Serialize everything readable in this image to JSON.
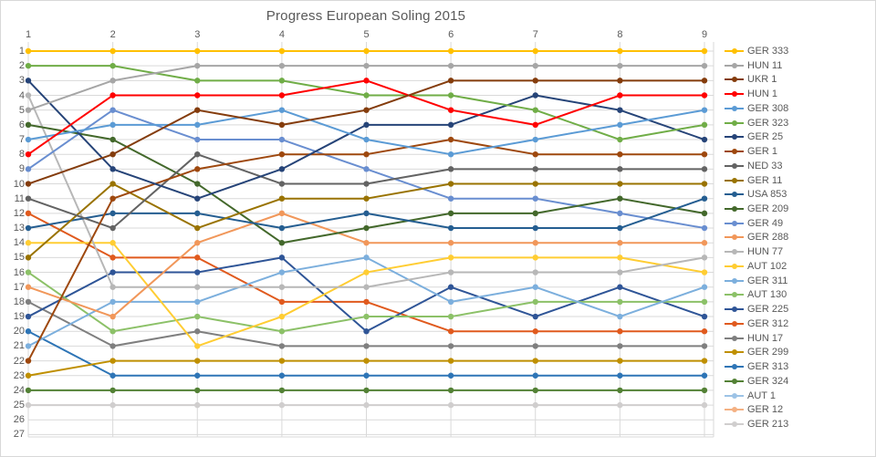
{
  "chart_data": {
    "type": "line",
    "subtype": "bump-rank-progress",
    "title": "Progress European Soling 2015",
    "x_ticks": [
      "1",
      "2",
      "3",
      "4",
      "5",
      "6",
      "7",
      "8",
      "9"
    ],
    "x_axis_position": "top",
    "y_ticks": [
      "1",
      "2",
      "3",
      "4",
      "5",
      "6",
      "7",
      "8",
      "9",
      "10",
      "11",
      "12",
      "13",
      "14",
      "15",
      "16",
      "17",
      "18",
      "19",
      "20",
      "21",
      "22",
      "23",
      "24",
      "25",
      "26",
      "27"
    ],
    "y_axis_inverted_rank": true,
    "ylim": [
      1,
      27
    ],
    "grid": true,
    "grid_color": "#d9d9d9",
    "text_color": "#595959",
    "legend_position": "right",
    "series": [
      {
        "name": "GER 333",
        "color": "#FFC000",
        "values": [
          1,
          1,
          1,
          1,
          1,
          1,
          1,
          1,
          1
        ]
      },
      {
        "name": "HUN 11",
        "color": "#A6A6A6",
        "values": [
          5,
          3,
          2,
          2,
          2,
          2,
          2,
          2,
          2
        ]
      },
      {
        "name": "UKR 1",
        "color": "#843C0C",
        "values": [
          10,
          8,
          5,
          6,
          5,
          3,
          3,
          3,
          3
        ]
      },
      {
        "name": "HUN 1",
        "color": "#FF0000",
        "values": [
          8,
          4,
          4,
          4,
          3,
          5,
          6,
          4,
          4
        ]
      },
      {
        "name": "GER 308",
        "color": "#5B9BD5",
        "values": [
          7,
          6,
          6,
          5,
          7,
          8,
          7,
          6,
          5
        ]
      },
      {
        "name": "GER 323",
        "color": "#70AD47",
        "values": [
          2,
          2,
          3,
          3,
          4,
          4,
          5,
          7,
          6
        ]
      },
      {
        "name": "GER 25",
        "color": "#264478",
        "values": [
          3,
          9,
          11,
          9,
          6,
          6,
          4,
          5,
          7
        ]
      },
      {
        "name": "GER 1",
        "color": "#9E480E",
        "values": [
          22,
          11,
          9,
          8,
          8,
          7,
          8,
          8,
          8
        ]
      },
      {
        "name": "NED 33",
        "color": "#636363",
        "values": [
          11,
          13,
          8,
          10,
          10,
          9,
          9,
          9,
          9
        ]
      },
      {
        "name": "GER 11",
        "color": "#997300",
        "values": [
          15,
          10,
          13,
          11,
          11,
          10,
          10,
          10,
          10
        ]
      },
      {
        "name": "USA 853",
        "color": "#255E91",
        "values": [
          13,
          12,
          12,
          13,
          12,
          13,
          13,
          13,
          11
        ]
      },
      {
        "name": "GER 209",
        "color": "#43682B",
        "values": [
          6,
          7,
          10,
          14,
          13,
          12,
          12,
          11,
          12
        ]
      },
      {
        "name": "GER 49",
        "color": "#698ED0",
        "values": [
          9,
          5,
          7,
          7,
          9,
          11,
          11,
          12,
          13
        ]
      },
      {
        "name": "GER 288",
        "color": "#F1975A",
        "values": [
          17,
          19,
          14,
          12,
          14,
          14,
          14,
          14,
          14
        ]
      },
      {
        "name": "HUN 77",
        "color": "#B7B7B7",
        "values": [
          4,
          17,
          17,
          17,
          17,
          16,
          16,
          16,
          15
        ]
      },
      {
        "name": "AUT 102",
        "color": "#FFCD33",
        "values": [
          14,
          14,
          21,
          19,
          16,
          15,
          15,
          15,
          16
        ]
      },
      {
        "name": "GER 311",
        "color": "#7CAFDD",
        "values": [
          21,
          18,
          18,
          16,
          15,
          18,
          17,
          19,
          17
        ]
      },
      {
        "name": "AUT 130",
        "color": "#8CC168",
        "values": [
          16,
          20,
          19,
          20,
          19,
          19,
          18,
          18,
          18
        ]
      },
      {
        "name": "GER 225",
        "color": "#2F5597",
        "values": [
          19,
          16,
          16,
          15,
          20,
          17,
          19,
          17,
          19
        ]
      },
      {
        "name": "GER 312",
        "color": "#E05A1E",
        "values": [
          12,
          15,
          15,
          18,
          18,
          20,
          20,
          20,
          20
        ]
      },
      {
        "name": "HUN 17",
        "color": "#7F7F7F",
        "values": [
          18,
          21,
          20,
          21,
          21,
          21,
          21,
          21,
          21
        ]
      },
      {
        "name": "GER 299",
        "color": "#BF8F00",
        "values": [
          23,
          22,
          22,
          22,
          22,
          22,
          22,
          22,
          22
        ]
      },
      {
        "name": "GER 313",
        "color": "#2E75B6",
        "values": [
          20,
          23,
          23,
          23,
          23,
          23,
          23,
          23,
          23
        ]
      },
      {
        "name": "GER 324",
        "color": "#538135",
        "values": [
          24,
          24,
          24,
          24,
          24,
          24,
          24,
          24,
          24
        ]
      },
      {
        "name": "AUT 1",
        "color": "#9DC3E6",
        "values": [
          null,
          null,
          null,
          null,
          null,
          null,
          null,
          null,
          null
        ]
      },
      {
        "name": "GER 12",
        "color": "#F4B183",
        "values": [
          null,
          null,
          null,
          null,
          null,
          null,
          null,
          null,
          null
        ]
      },
      {
        "name": "GER 213",
        "color": "#D0CECE",
        "values": [
          25,
          25,
          25,
          25,
          25,
          25,
          25,
          25,
          25
        ]
      }
    ]
  },
  "layout_note": "ranks 26-27 unused; AUT 1 and GER 12 appear in legend only"
}
